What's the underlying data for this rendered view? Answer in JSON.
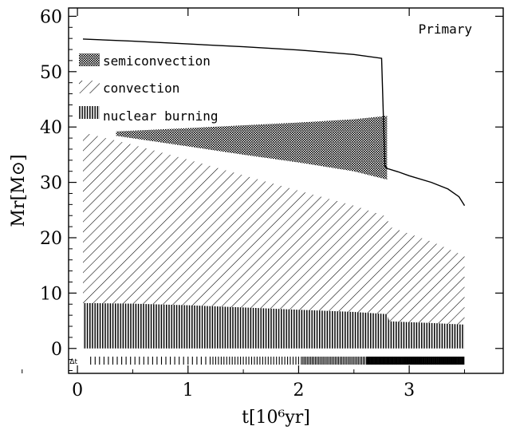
{
  "chart_data": {
    "type": "area",
    "title": "Primary",
    "xlabel": "t[10⁶yr]",
    "ylabel": "Mr[M⊙]",
    "xlim": [
      -0.08,
      3.85
    ],
    "ylim": [
      -4.5,
      61.5
    ],
    "grid": false,
    "legend_position": "top-left",
    "x_ticks": [
      0,
      1,
      2,
      3
    ],
    "x_tick_labels": [
      "0",
      "1",
      "2",
      "3"
    ],
    "y_ticks": [
      0,
      10,
      20,
      30,
      40,
      50,
      60
    ],
    "y_tick_labels": [
      "0",
      "10",
      "20",
      "30",
      "40",
      "50",
      "60"
    ],
    "legend": [
      {
        "label": "semiconvection",
        "pattern": "crosshatch"
      },
      {
        "label": "convection",
        "pattern": "diagonal"
      },
      {
        "label": "nuclear burning",
        "pattern": "vertical"
      }
    ],
    "series": [
      {
        "kind": "line",
        "x": [
          0.05,
          0.5,
          1.0,
          1.5,
          2.0,
          2.5,
          2.75,
          2.78,
          2.8,
          2.9,
          3.0,
          3.2,
          3.35,
          3.45,
          3.5
        ],
        "values": [
          55.9,
          55.5,
          55.0,
          54.5,
          53.9,
          53.1,
          52.4,
          33.0,
          32.5,
          31.9,
          31.2,
          30.0,
          28.8,
          27.4,
          25.8
        ]
      },
      {
        "kind": "convection",
        "x": [
          0.05,
          0.5,
          1.0,
          1.5,
          2.0,
          2.5,
          2.8,
          2.82,
          3.2,
          3.5
        ],
        "top": [
          39.0,
          36.8,
          34.1,
          31.3,
          28.5,
          25.8,
          23.8,
          22.0,
          19.3,
          16.7
        ],
        "bottom": [
          0,
          0,
          0,
          0,
          0,
          0,
          0,
          0,
          0,
          0
        ]
      },
      {
        "kind": "semiconvection",
        "x": [
          0.35,
          1.0,
          1.5,
          2.0,
          2.5,
          2.8
        ],
        "top": [
          39.2,
          39.8,
          40.3,
          40.8,
          41.4,
          42.0
        ],
        "bottom": [
          38.4,
          36.5,
          35.0,
          33.6,
          32.0,
          30.5
        ]
      },
      {
        "kind": "nuclear_burning",
        "x": [
          0.05,
          0.5,
          1.0,
          1.5,
          2.0,
          2.5,
          2.8,
          2.82,
          3.2,
          3.5
        ],
        "top": [
          8.2,
          8.1,
          7.8,
          7.4,
          7.0,
          6.6,
          6.2,
          4.9,
          4.6,
          4.3
        ],
        "bottom": [
          0,
          0,
          0,
          0,
          0,
          0,
          0,
          0,
          0,
          0
        ]
      }
    ],
    "time_step_marker_level": -2.2
  }
}
